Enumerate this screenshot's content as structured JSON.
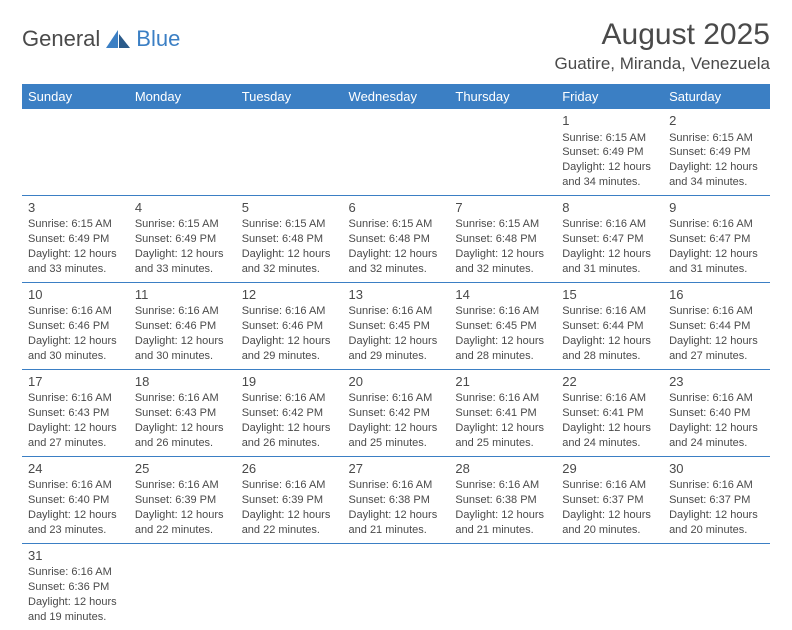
{
  "logo": {
    "text_dark": "General",
    "text_blue": "Blue"
  },
  "header": {
    "month_title": "August 2025",
    "location": "Guatire, Miranda, Venezuela"
  },
  "colors": {
    "header_bg": "#3b7fc4",
    "header_fg": "#ffffff",
    "text": "#4a4a4a",
    "row_border": "#3b7fc4"
  },
  "weekdays": [
    "Sunday",
    "Monday",
    "Tuesday",
    "Wednesday",
    "Thursday",
    "Friday",
    "Saturday"
  ],
  "weeks": [
    [
      null,
      null,
      null,
      null,
      null,
      {
        "day": "1",
        "sunrise": "6:15 AM",
        "sunset": "6:49 PM",
        "daylight": "12 hours and 34 minutes."
      },
      {
        "day": "2",
        "sunrise": "6:15 AM",
        "sunset": "6:49 PM",
        "daylight": "12 hours and 34 minutes."
      }
    ],
    [
      {
        "day": "3",
        "sunrise": "6:15 AM",
        "sunset": "6:49 PM",
        "daylight": "12 hours and 33 minutes."
      },
      {
        "day": "4",
        "sunrise": "6:15 AM",
        "sunset": "6:49 PM",
        "daylight": "12 hours and 33 minutes."
      },
      {
        "day": "5",
        "sunrise": "6:15 AM",
        "sunset": "6:48 PM",
        "daylight": "12 hours and 32 minutes."
      },
      {
        "day": "6",
        "sunrise": "6:15 AM",
        "sunset": "6:48 PM",
        "daylight": "12 hours and 32 minutes."
      },
      {
        "day": "7",
        "sunrise": "6:15 AM",
        "sunset": "6:48 PM",
        "daylight": "12 hours and 32 minutes."
      },
      {
        "day": "8",
        "sunrise": "6:16 AM",
        "sunset": "6:47 PM",
        "daylight": "12 hours and 31 minutes."
      },
      {
        "day": "9",
        "sunrise": "6:16 AM",
        "sunset": "6:47 PM",
        "daylight": "12 hours and 31 minutes."
      }
    ],
    [
      {
        "day": "10",
        "sunrise": "6:16 AM",
        "sunset": "6:46 PM",
        "daylight": "12 hours and 30 minutes."
      },
      {
        "day": "11",
        "sunrise": "6:16 AM",
        "sunset": "6:46 PM",
        "daylight": "12 hours and 30 minutes."
      },
      {
        "day": "12",
        "sunrise": "6:16 AM",
        "sunset": "6:46 PM",
        "daylight": "12 hours and 29 minutes."
      },
      {
        "day": "13",
        "sunrise": "6:16 AM",
        "sunset": "6:45 PM",
        "daylight": "12 hours and 29 minutes."
      },
      {
        "day": "14",
        "sunrise": "6:16 AM",
        "sunset": "6:45 PM",
        "daylight": "12 hours and 28 minutes."
      },
      {
        "day": "15",
        "sunrise": "6:16 AM",
        "sunset": "6:44 PM",
        "daylight": "12 hours and 28 minutes."
      },
      {
        "day": "16",
        "sunrise": "6:16 AM",
        "sunset": "6:44 PM",
        "daylight": "12 hours and 27 minutes."
      }
    ],
    [
      {
        "day": "17",
        "sunrise": "6:16 AM",
        "sunset": "6:43 PM",
        "daylight": "12 hours and 27 minutes."
      },
      {
        "day": "18",
        "sunrise": "6:16 AM",
        "sunset": "6:43 PM",
        "daylight": "12 hours and 26 minutes."
      },
      {
        "day": "19",
        "sunrise": "6:16 AM",
        "sunset": "6:42 PM",
        "daylight": "12 hours and 26 minutes."
      },
      {
        "day": "20",
        "sunrise": "6:16 AM",
        "sunset": "6:42 PM",
        "daylight": "12 hours and 25 minutes."
      },
      {
        "day": "21",
        "sunrise": "6:16 AM",
        "sunset": "6:41 PM",
        "daylight": "12 hours and 25 minutes."
      },
      {
        "day": "22",
        "sunrise": "6:16 AM",
        "sunset": "6:41 PM",
        "daylight": "12 hours and 24 minutes."
      },
      {
        "day": "23",
        "sunrise": "6:16 AM",
        "sunset": "6:40 PM",
        "daylight": "12 hours and 24 minutes."
      }
    ],
    [
      {
        "day": "24",
        "sunrise": "6:16 AM",
        "sunset": "6:40 PM",
        "daylight": "12 hours and 23 minutes."
      },
      {
        "day": "25",
        "sunrise": "6:16 AM",
        "sunset": "6:39 PM",
        "daylight": "12 hours and 22 minutes."
      },
      {
        "day": "26",
        "sunrise": "6:16 AM",
        "sunset": "6:39 PM",
        "daylight": "12 hours and 22 minutes."
      },
      {
        "day": "27",
        "sunrise": "6:16 AM",
        "sunset": "6:38 PM",
        "daylight": "12 hours and 21 minutes."
      },
      {
        "day": "28",
        "sunrise": "6:16 AM",
        "sunset": "6:38 PM",
        "daylight": "12 hours and 21 minutes."
      },
      {
        "day": "29",
        "sunrise": "6:16 AM",
        "sunset": "6:37 PM",
        "daylight": "12 hours and 20 minutes."
      },
      {
        "day": "30",
        "sunrise": "6:16 AM",
        "sunset": "6:37 PM",
        "daylight": "12 hours and 20 minutes."
      }
    ],
    [
      {
        "day": "31",
        "sunrise": "6:16 AM",
        "sunset": "6:36 PM",
        "daylight": "12 hours and 19 minutes."
      },
      null,
      null,
      null,
      null,
      null,
      null
    ]
  ],
  "labels": {
    "sunrise_prefix": "Sunrise: ",
    "sunset_prefix": "Sunset: ",
    "daylight_prefix": "Daylight: "
  }
}
